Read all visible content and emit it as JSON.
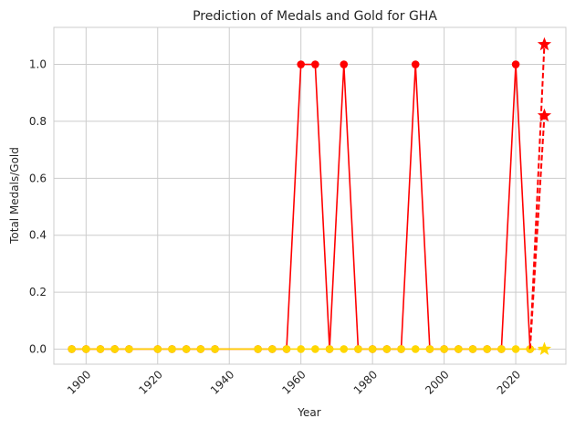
{
  "chart_data": {
    "type": "line",
    "title": "Prediction of Medals and Gold for GHA",
    "xlabel": "Year",
    "ylabel": "Total Medals/Gold",
    "xlim": [
      1891,
      2034
    ],
    "ylim": [
      -0.053,
      1.13
    ],
    "xticks": [
      1900,
      1920,
      1940,
      1960,
      1980,
      2000,
      2020
    ],
    "yticks": [
      0.0,
      0.2,
      0.4,
      0.6,
      0.8,
      1.0
    ],
    "xtick_labels": [
      "1900",
      "1920",
      "1940",
      "1960",
      "1980",
      "2000",
      "2020"
    ],
    "ytick_labels": [
      "0.0",
      "0.2",
      "0.4",
      "0.6",
      "0.8",
      "1.0"
    ],
    "xtick_rotation": 45,
    "grid": true,
    "series": [
      {
        "style": "line-circle",
        "color": "#ff0000",
        "x": [
          1896,
          1900,
          1904,
          1908,
          1912,
          1920,
          1924,
          1928,
          1932,
          1936,
          1948,
          1952,
          1956,
          1960,
          1964,
          1968,
          1972,
          1976,
          1980,
          1984,
          1988,
          1992,
          1996,
          2000,
          2004,
          2008,
          2012,
          2016,
          2020,
          2024
        ],
        "y": [
          0,
          0,
          0,
          0,
          0,
          0,
          0,
          0,
          0,
          0,
          0,
          0,
          0,
          1,
          1,
          0,
          1,
          0,
          0,
          0,
          0,
          1,
          0,
          0,
          0,
          0,
          0,
          0,
          1,
          0
        ]
      },
      {
        "style": "line-circle",
        "color": "#ffd700",
        "x": [
          1896,
          1900,
          1904,
          1908,
          1912,
          1920,
          1924,
          1928,
          1932,
          1936,
          1948,
          1952,
          1956,
          1960,
          1964,
          1968,
          1972,
          1976,
          1980,
          1984,
          1988,
          1992,
          1996,
          2000,
          2004,
          2008,
          2012,
          2016,
          2020,
          2024
        ],
        "y": [
          0,
          0,
          0,
          0,
          0,
          0,
          0,
          0,
          0,
          0,
          0,
          0,
          0,
          0,
          0,
          0,
          0,
          0,
          0,
          0,
          0,
          0,
          0,
          0,
          0,
          0,
          0,
          0,
          0,
          0
        ]
      },
      {
        "style": "dashed-star",
        "color": "#ff0000",
        "x": [
          2024,
          2028
        ],
        "y": [
          0,
          1.07
        ]
      },
      {
        "style": "dashed-star",
        "color": "#ff0000",
        "x": [
          2024,
          2028
        ],
        "y": [
          0,
          0.82
        ]
      },
      {
        "style": "dashed-star",
        "color": "#ffd700",
        "x": [
          2024,
          2028
        ],
        "y": [
          0,
          0
        ]
      }
    ]
  }
}
